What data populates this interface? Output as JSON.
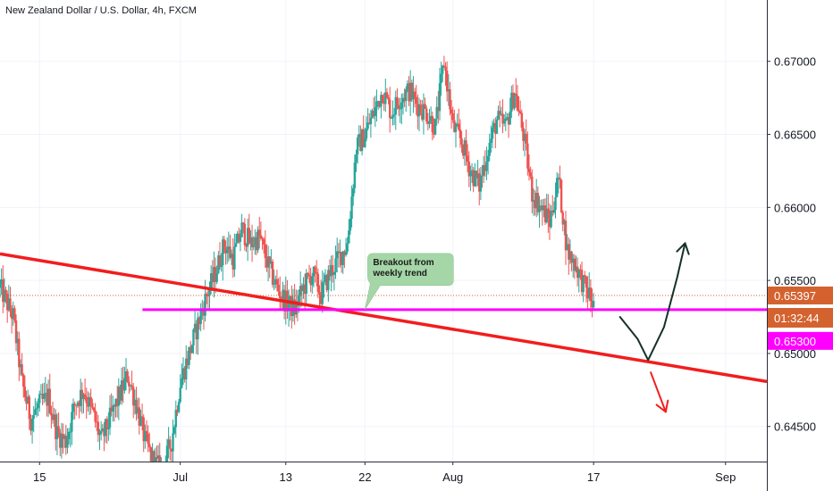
{
  "header": {
    "symbol_title": "New Zealand Dollar / U.S. Dollar, 4h, FXCM"
  },
  "chart_data": {
    "type": "candlestick",
    "title": "New Zealand Dollar / U.S. Dollar, 4h, FXCM",
    "y_axis": {
      "ticks": [
        0.645,
        0.65,
        0.655,
        0.66,
        0.665,
        0.67
      ],
      "tick_labels": [
        "0.64500",
        "0.65000",
        "0.65500",
        "0.66000",
        "0.66500",
        "0.67000"
      ],
      "range": [
        0.6426,
        0.6742
      ]
    },
    "x_axis": {
      "ticks": [
        {
          "label": "15",
          "day": 15
        },
        {
          "label": "Jul",
          "day": 31
        },
        {
          "label": "13",
          "day": 43
        },
        {
          "label": "22",
          "day": 52
        },
        {
          "label": "Aug",
          "day": 62
        },
        {
          "label": "17",
          "day": 78
        },
        {
          "label": "Sep",
          "day": 93
        }
      ],
      "day_range": [
        10.5,
        97.7
      ]
    },
    "price_path": [
      [
        10.5,
        0.6545
      ],
      [
        12,
        0.6525
      ],
      [
        13,
        0.648
      ],
      [
        14,
        0.6455
      ],
      [
        15,
        0.6465
      ],
      [
        16,
        0.647
      ],
      [
        17,
        0.6445
      ],
      [
        18,
        0.644
      ],
      [
        19,
        0.6465
      ],
      [
        20,
        0.6475
      ],
      [
        21,
        0.646
      ],
      [
        22,
        0.644
      ],
      [
        23,
        0.6455
      ],
      [
        24,
        0.647
      ],
      [
        25,
        0.6485
      ],
      [
        26,
        0.6465
      ],
      [
        27,
        0.644
      ],
      [
        28,
        0.6425
      ],
      [
        29,
        0.642
      ],
      [
        30,
        0.644
      ],
      [
        31,
        0.648
      ],
      [
        32,
        0.65
      ],
      [
        33,
        0.652
      ],
      [
        34,
        0.654
      ],
      [
        35,
        0.6555
      ],
      [
        36,
        0.6575
      ],
      [
        37,
        0.6565
      ],
      [
        38,
        0.6585
      ],
      [
        39,
        0.6575
      ],
      [
        40,
        0.658
      ],
      [
        41,
        0.656
      ],
      [
        42,
        0.6545
      ],
      [
        43,
        0.6535
      ],
      [
        44,
        0.653
      ],
      [
        45,
        0.6545
      ],
      [
        46,
        0.6555
      ],
      [
        47,
        0.654
      ],
      [
        48,
        0.6555
      ],
      [
        49,
        0.6565
      ],
      [
        50,
        0.6575
      ],
      [
        51,
        0.664
      ],
      [
        52,
        0.665
      ],
      [
        53,
        0.6665
      ],
      [
        54,
        0.668
      ],
      [
        55,
        0.6665
      ],
      [
        56,
        0.6675
      ],
      [
        57,
        0.668
      ],
      [
        58,
        0.667
      ],
      [
        59,
        0.6665
      ],
      [
        60,
        0.6655
      ],
      [
        61,
        0.67
      ],
      [
        62,
        0.6655
      ],
      [
        63,
        0.6645
      ],
      [
        64,
        0.6625
      ],
      [
        65,
        0.6615
      ],
      [
        66,
        0.664
      ],
      [
        67,
        0.666
      ],
      [
        68,
        0.6655
      ],
      [
        69,
        0.668
      ],
      [
        70,
        0.665
      ],
      [
        71,
        0.661
      ],
      [
        72,
        0.66
      ],
      [
        73,
        0.659
      ],
      [
        74,
        0.662
      ],
      [
        75,
        0.657
      ],
      [
        76,
        0.656
      ],
      [
        77,
        0.6545
      ],
      [
        77.5,
        0.654
      ],
      [
        78,
        0.6532
      ]
    ],
    "lines": [
      {
        "name": "weekly-trendline",
        "color": "#f21d1d",
        "points": [
          [
            10.5,
            0.65682
          ],
          [
            97.7,
            0.64808
          ]
        ]
      },
      {
        "name": "support-level",
        "color": "#ff00ff",
        "points": [
          [
            26.7,
            0.653
          ],
          [
            97.7,
            0.653
          ]
        ]
      },
      {
        "name": "current-price-line",
        "color": "#d4622f",
        "points": [
          [
            10.5,
            0.65397
          ],
          [
            97.7,
            0.65397
          ]
        ],
        "dashed": true
      }
    ],
    "projections": [
      {
        "name": "bullish-projection-arrow",
        "color": "#15302a",
        "points": [
          [
            81,
            0.6525
          ],
          [
            83,
            0.651
          ],
          [
            84.2,
            0.64955
          ],
          [
            86,
            0.6518
          ],
          [
            87.5,
            0.6552
          ],
          [
            88.4,
            0.65755
          ]
        ]
      },
      {
        "name": "bearish-projection-arrow",
        "color": "#f21d1d",
        "points": [
          [
            84.5,
            0.6487
          ],
          [
            86.2,
            0.646
          ]
        ]
      }
    ],
    "annotation": {
      "text_lines": [
        "Breakout from",
        "weekly trend"
      ],
      "anchor": [
        52,
        0.653
      ],
      "fill": "#a5d6a7"
    },
    "price_labels": [
      {
        "name": "current-price-label",
        "text": "0.65397",
        "bg": "#d4622f",
        "value": 0.65397
      },
      {
        "name": "countdown-label",
        "text": "01:32:44",
        "bg": "#d4622f"
      },
      {
        "name": "support-price-label",
        "text": "0.65300",
        "bg": "#ff00ff",
        "value": 0.653
      }
    ],
    "colors": {
      "bull": "#26a69a",
      "bear": "#ef5350",
      "grid": "#f0f3fa",
      "axis_text": "#131722"
    },
    "grid": true
  }
}
